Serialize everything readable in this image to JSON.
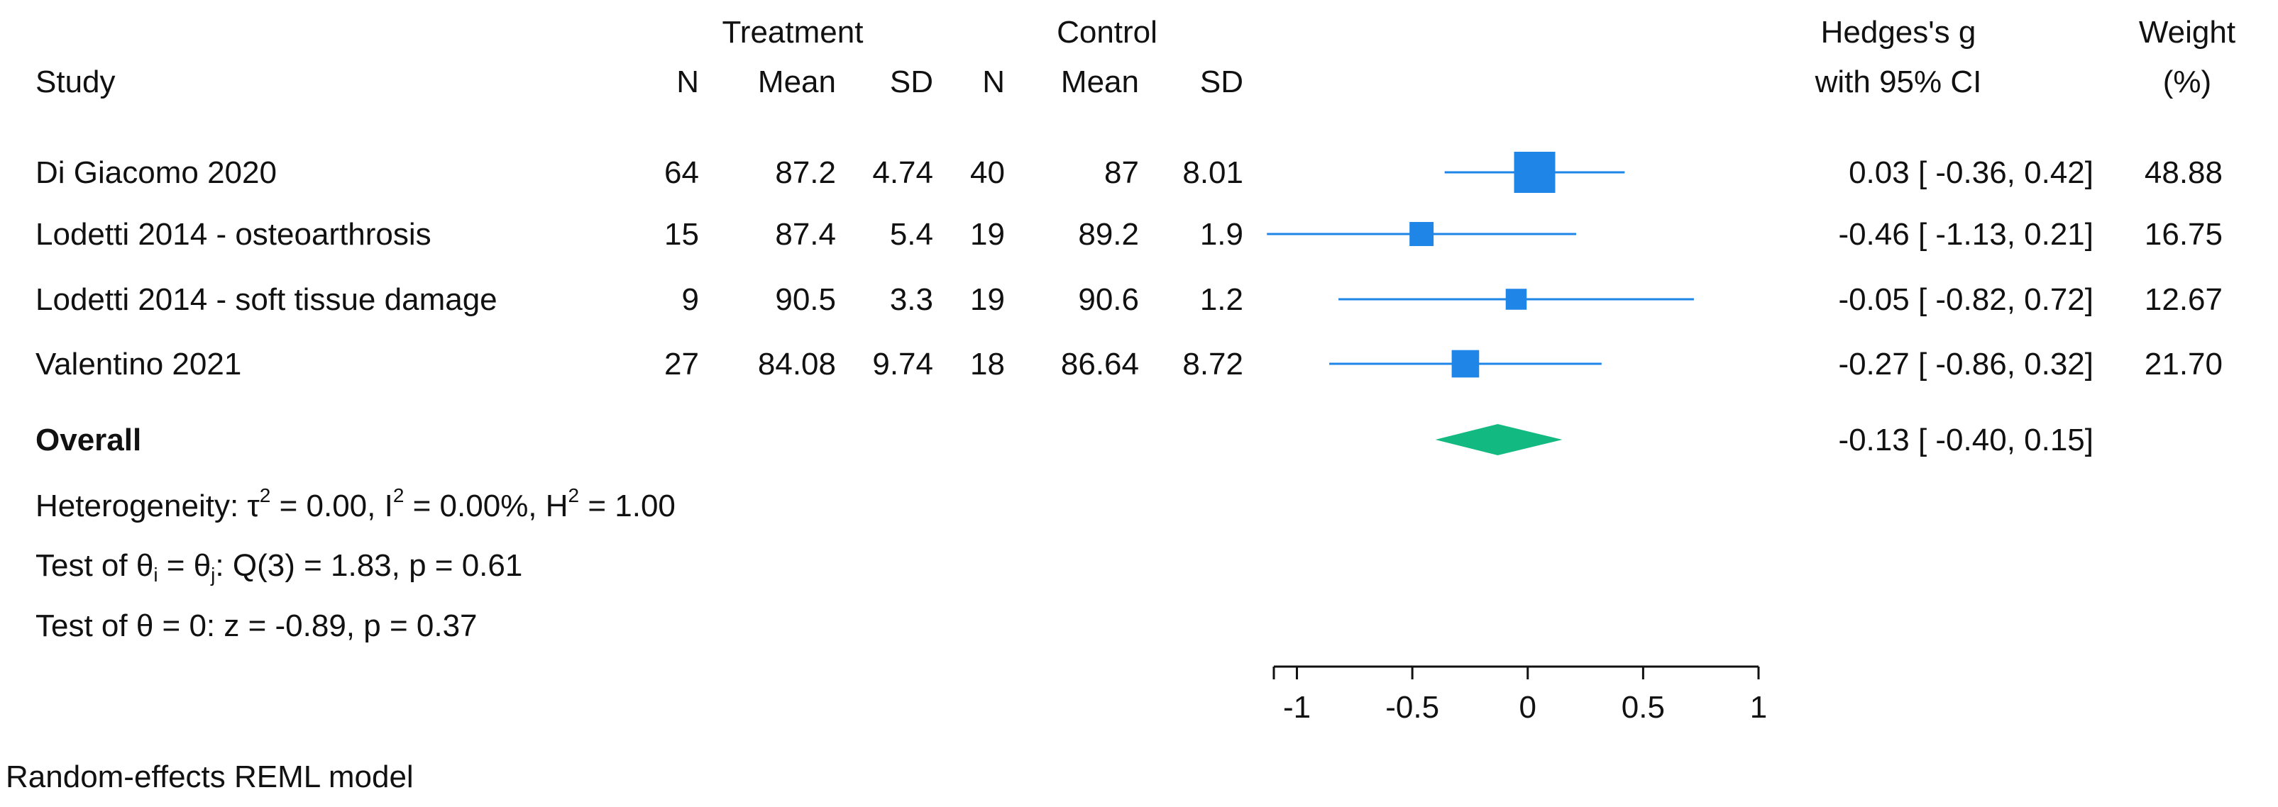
{
  "chart_data": {
    "type": "forest",
    "title": "",
    "headers": {
      "study": "Study",
      "treatment_group": "Treatment",
      "control_group": "Control",
      "n": "N",
      "mean": "Mean",
      "sd": "SD",
      "effect_line1": "Hedges's g",
      "effect_line2": "with 95% CI",
      "weight_line1": "Weight",
      "weight_line2": "(%)"
    },
    "studies": [
      {
        "name": "Di Giacomo 2020",
        "t_n": "64",
        "t_mean": "87.2",
        "t_sd": "4.74",
        "c_n": "40",
        "c_mean": "87",
        "c_sd": "8.01",
        "g": 0.03,
        "lo": -0.36,
        "hi": 0.42,
        "ci_text": "0.03 [ -0.36,  0.42]",
        "weight": "48.88"
      },
      {
        "name": "Lodetti 2014 - osteoarthrosis",
        "t_n": "15",
        "t_mean": "87.4",
        "t_sd": "5.4",
        "c_n": "19",
        "c_mean": "89.2",
        "c_sd": "1.9",
        "g": -0.46,
        "lo": -1.13,
        "hi": 0.21,
        "ci_text": "-0.46 [ -1.13,  0.21]",
        "weight": "16.75"
      },
      {
        "name": "Lodetti 2014 - soft tissue damage",
        "t_n": "9",
        "t_mean": "90.5",
        "t_sd": "3.3",
        "c_n": "19",
        "c_mean": "90.6",
        "c_sd": "1.2",
        "g": -0.05,
        "lo": -0.82,
        "hi": 0.72,
        "ci_text": "-0.05 [ -0.82,  0.72]",
        "weight": "12.67"
      },
      {
        "name": "Valentino 2021",
        "t_n": "27",
        "t_mean": "84.08",
        "t_sd": "9.74",
        "c_n": "18",
        "c_mean": "86.64",
        "c_sd": "8.72",
        "g": -0.27,
        "lo": -0.86,
        "hi": 0.32,
        "ci_text": "-0.27 [ -0.86,  0.32]",
        "weight": "21.70"
      }
    ],
    "overall": {
      "label": "Overall",
      "g": -0.13,
      "lo": -0.4,
      "hi": 0.15,
      "ci_text": "-0.13 [ -0.40,  0.15]"
    },
    "stats": {
      "heterogeneity": {
        "prefix": "Heterogeneity: τ",
        "tau_exp": "2",
        "tau_val": " = 0.00, I",
        "i_exp": "2",
        "i_val": " = 0.00%, H",
        "h_exp": "2",
        "h_val": " = 1.00"
      },
      "test_equal": {
        "prefix": "Test of θ",
        "sub_i": "i",
        "middle": " = θ",
        "sub_j": "j",
        "suffix": ": Q(3) = 1.83, p = 0.61"
      },
      "test_zero": "Test of θ = 0: z = -0.89, p = 0.37"
    },
    "axis": {
      "xlim": [
        -1.1,
        1.0
      ],
      "ticks": [
        -1,
        -0.5,
        0,
        0.5,
        1
      ],
      "tick_labels": [
        "-1",
        "-0.5",
        "0",
        "0.5",
        "1"
      ],
      "xlabel": ""
    },
    "model_note": "Random-effects REML model",
    "colors": {
      "study_marker": "#1f86e8",
      "ci_line": "#1f86e8",
      "overall_diamond": "#12b981",
      "text": "#111111",
      "axis": "#111111"
    }
  }
}
